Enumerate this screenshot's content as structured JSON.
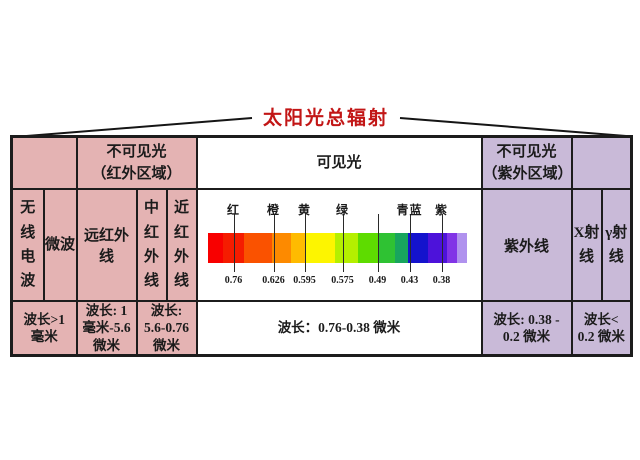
{
  "title": "太阳光总辐射",
  "table": {
    "header": {
      "left_empty": "",
      "infrared": [
        "不可见光",
        "（红外区域）"
      ],
      "visible": "可见光",
      "ultraviolet": [
        "不可见光",
        "（紫外区域）"
      ],
      "right_empty": ""
    },
    "bands": {
      "radio": "无线电波",
      "microwave": "微波",
      "far_infrared": [
        "远红外",
        "线"
      ],
      "mid_infrared": "中红外线",
      "near_infrared": "近红外线",
      "ultraviolet": "紫外线",
      "xray": "X射线",
      "gamma": "γ射线"
    },
    "wavelengths": {
      "radio": [
        "波长>1",
        "毫米"
      ],
      "far_infrared": [
        "波长: 1",
        "毫米-5.6",
        "微米"
      ],
      "mid_near_infrared": [
        "波长:",
        "5.6-0.76",
        "微米"
      ],
      "visible": "波长：0.76-0.38 微米",
      "ultraviolet": [
        "波长: 0.38 -",
        "0.2 微米"
      ],
      "xray_gamma": [
        "波长<",
        "0.2 微米"
      ]
    }
  },
  "spectrum": {
    "color_labels": [
      "红",
      "橙",
      "黄",
      "绿",
      "青蓝",
      "紫"
    ],
    "tick_values": [
      "0.76",
      "0.626",
      "0.595",
      "0.575",
      "0.49",
      "0.43",
      "0.38"
    ],
    "blocks": [
      {
        "color": "#f80000",
        "w": 6
      },
      {
        "color": "#f51c00",
        "w": 8
      },
      {
        "color": "#fa5200",
        "w": 11
      },
      {
        "color": "#fd8a00",
        "w": 7
      },
      {
        "color": "#ffbb00",
        "w": 6
      },
      {
        "color": "#fdf500",
        "w": 11
      },
      {
        "color": "#b5ef00",
        "w": 9
      },
      {
        "color": "#5edc00",
        "w": 8
      },
      {
        "color": "#2fc233",
        "w": 6
      },
      {
        "color": "#18a55e",
        "w": 5
      },
      {
        "color": "#1413cd",
        "w": 8
      },
      {
        "color": "#4d12da",
        "w": 7
      },
      {
        "color": "#8134e6",
        "w": 4
      },
      {
        "color": "#b092ee",
        "w": 4
      }
    ]
  },
  "colors": {
    "pink": "#e4b3b3",
    "purple": "#c9bad8",
    "titlered": "#c21616",
    "border": "#1c1c1c"
  }
}
